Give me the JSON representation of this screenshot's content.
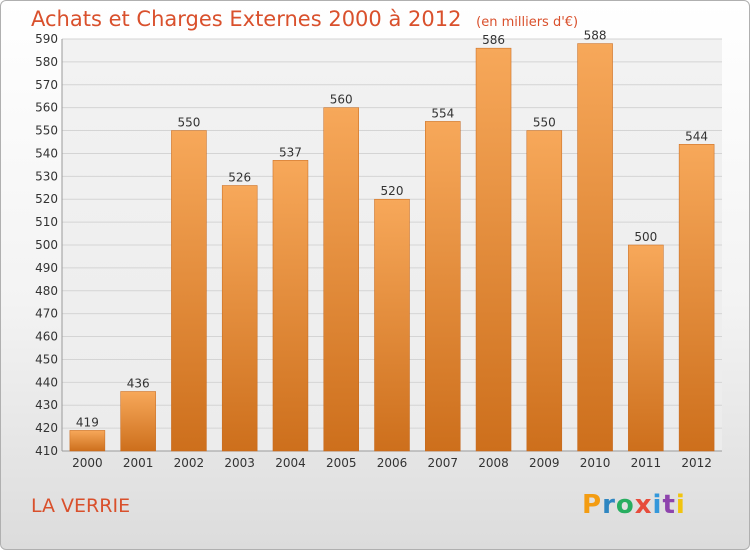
{
  "title": "Achats et Charges Externes 2000 à 2012",
  "unit_label": "(en milliers d'€)",
  "town": "LA VERRIE",
  "logo": {
    "text": "Proxiti",
    "colors": [
      "#f39c12",
      "#2e86c1",
      "#27ae60",
      "#e74c3c",
      "#3498db",
      "#8e44ad",
      "#f1c40f"
    ]
  },
  "colors": {
    "accent": "#d9502c",
    "bar_top": "#f7a85a",
    "bar_bottom": "#cd6f1c"
  },
  "chart_data": {
    "type": "bar",
    "title": "Achats et Charges Externes 2000 à 2012",
    "subtitle": "(en milliers d'€)",
    "categories": [
      "2000",
      "2001",
      "2002",
      "2003",
      "2004",
      "2005",
      "2006",
      "2007",
      "2008",
      "2009",
      "2010",
      "2011",
      "2012"
    ],
    "values": [
      419,
      436,
      550,
      526,
      537,
      560,
      520,
      554,
      586,
      550,
      588,
      500,
      544
    ],
    "ylim": [
      410,
      590
    ],
    "yticks": [
      410,
      420,
      430,
      440,
      450,
      460,
      470,
      480,
      490,
      500,
      510,
      520,
      530,
      540,
      550,
      560,
      570,
      580,
      590
    ],
    "grid": true,
    "xlabel": "",
    "ylabel": ""
  }
}
